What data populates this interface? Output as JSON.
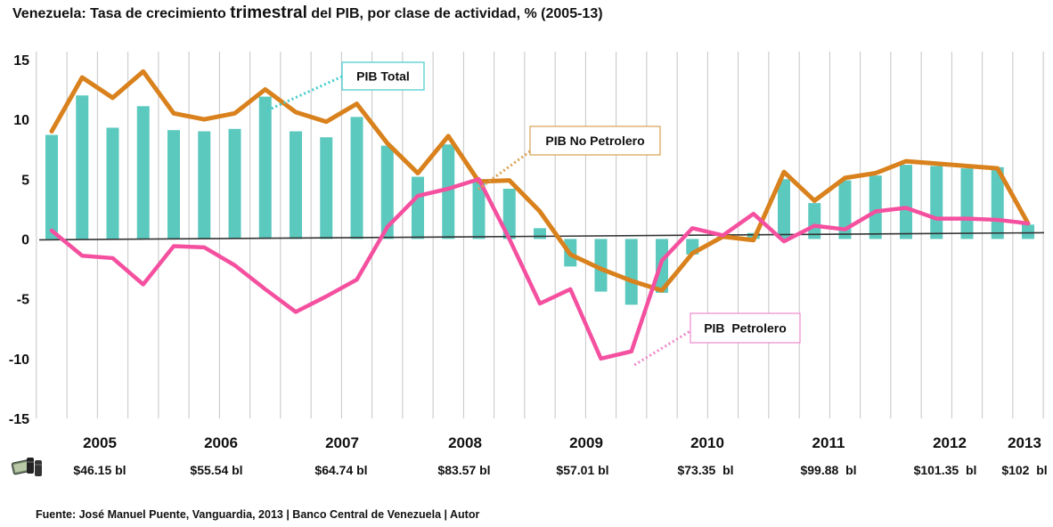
{
  "title": {
    "prefix": "Venezuela: Tasa de crecimiento ",
    "emphasis": "trimestral",
    "suffix": " del PIB, por clase de actividad, % (2005-13)"
  },
  "source": "Fuente: José Manuel Puente, Vanguardia, 2013 | Banco Central de Venezuela | Autor",
  "chart_data": {
    "type": "bar",
    "ylim": [
      -15,
      17
    ],
    "y_ticks": [
      15,
      10,
      5,
      0,
      -5,
      -10,
      -15
    ],
    "grid": "vertical",
    "years": [
      "2005",
      "2006",
      "2007",
      "2008",
      "2009",
      "2010",
      "2011",
      "2012",
      "2013"
    ],
    "oil_prices": [
      "$46.15 bl",
      "$55.54 bl",
      "$64.74 bl",
      "$83.57 bl",
      "$57.01 bl",
      "$73.35  bl",
      "$99.88  bl",
      "$101.35  bl",
      "$102  bl"
    ],
    "quarters_count": 33,
    "series": [
      {
        "name": "PIB Total",
        "type": "bar",
        "color": "#5cc9bf",
        "values": [
          8.7,
          12.0,
          9.3,
          11.1,
          9.1,
          9.0,
          9.2,
          11.9,
          9.0,
          8.5,
          10.2,
          7.8,
          5.2,
          7.9,
          5.0,
          4.2,
          0.9,
          -2.3,
          -4.4,
          -5.5,
          -4.5,
          -1.3,
          0.2,
          0.5,
          5.0,
          3.0,
          4.9,
          5.3,
          6.2,
          6.1,
          5.9,
          6.0,
          1.2
        ]
      },
      {
        "name": "PIB No Petrolero",
        "type": "line",
        "color": "#d9811c",
        "values": [
          9.0,
          13.5,
          11.8,
          14.0,
          10.5,
          10.0,
          10.5,
          12.5,
          10.6,
          9.8,
          11.3,
          8.0,
          5.5,
          8.6,
          4.8,
          4.9,
          2.3,
          -1.3,
          -2.5,
          -3.5,
          -4.3,
          -1.2,
          0.2,
          -0.1,
          5.6,
          3.2,
          5.1,
          5.5,
          6.5,
          6.3,
          6.1,
          5.9,
          1.3
        ]
      },
      {
        "name": "PIB  Petrolero",
        "type": "line",
        "color": "#f4509f",
        "values": [
          0.7,
          -1.4,
          -1.6,
          -3.8,
          -0.6,
          -0.7,
          -2.2,
          -4.2,
          -6.1,
          -4.8,
          -3.4,
          1.0,
          3.6,
          4.2,
          5.0,
          0.0,
          -5.4,
          -4.2,
          -10.0,
          -9.4,
          -1.8,
          0.9,
          0.3,
          2.1,
          -0.2,
          1.1,
          0.8,
          2.3,
          2.6,
          1.7,
          1.7,
          1.6,
          1.3
        ]
      }
    ],
    "annotations": [
      {
        "label": "PIB Total",
        "border": "#44cccc",
        "text_color": "#111111"
      },
      {
        "label": "PIB No Petrolero",
        "border": "#d9a050",
        "text_color": "#111111"
      },
      {
        "label": "PIB  Petrolero",
        "border": "#ee88cc",
        "text_color": "#111111"
      }
    ],
    "icons": [
      "oil-barrels-money-icon"
    ]
  }
}
